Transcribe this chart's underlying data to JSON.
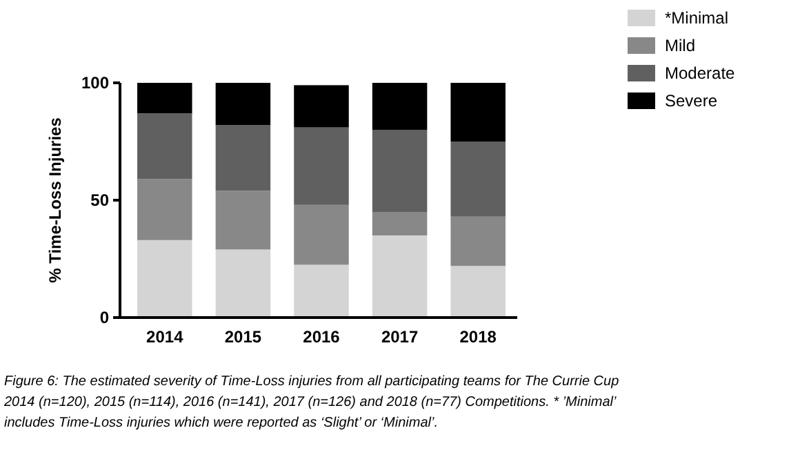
{
  "chart_data": {
    "type": "bar",
    "stacked": true,
    "ylabel": "% Time-Loss Injuries",
    "categories": [
      "2014",
      "2015",
      "2016",
      "2017",
      "2018"
    ],
    "series": [
      {
        "name": "*Minimal",
        "color": "#d4d4d4",
        "values": [
          33,
          29,
          22.5,
          35,
          22
        ]
      },
      {
        "name": "Mild",
        "color": "#888888",
        "values": [
          26,
          25,
          25.5,
          10,
          21
        ]
      },
      {
        "name": "Moderate",
        "color": "#606060",
        "values": [
          28,
          28,
          33,
          35,
          32
        ]
      },
      {
        "name": "Severe",
        "color": "#000000",
        "values": [
          13,
          18,
          18,
          20,
          25
        ]
      }
    ],
    "ylim": [
      0,
      100
    ],
    "yticks": [
      0,
      50,
      100
    ],
    "grid": false,
    "legend": "top right",
    "annotations": [
      "Figure 6: The estimated severity of Time-Loss injuries from all participating teams for The Currie Cup 2014 (n=120), 2015 (n=114), 2016 (n=141), 2017 (n=126) and 2018 (n=77) Competitions. * ’Minimal’ includes Time-Loss injuries which were reported as ‘Slight’ or ‘Minimal’."
    ]
  }
}
